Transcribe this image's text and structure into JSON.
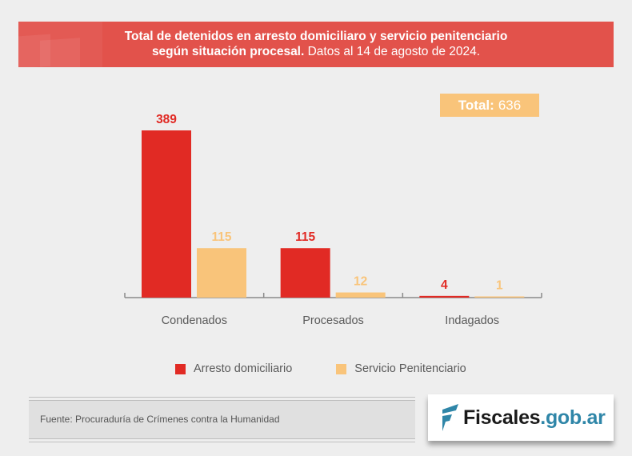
{
  "header": {
    "title_bold": "Total de detenidos en arresto domiciliaro y servicio penitenciario",
    "subtitle_bold": "según situación procesal.",
    "subtitle_regular": "Datos al 14 de agosto de 2024."
  },
  "total": {
    "label": "Total:",
    "value": "636"
  },
  "chart_data": {
    "type": "bar",
    "title": "Total de detenidos en arresto domiciliaro y servicio penitenciario según situación procesal. Datos al 14 de agosto de 2024.",
    "xlabel": "",
    "ylabel": "",
    "categories": [
      "Condenados",
      "Procesados",
      "Indagados"
    ],
    "series": [
      {
        "name": "Arresto domiciliario",
        "color": "#e12a24",
        "values": [
          389,
          115,
          4
        ]
      },
      {
        "name": "Servicio Penitenciario",
        "color": "#f9c47a",
        "values": [
          115,
          12,
          1
        ]
      }
    ],
    "ylim": [
      0,
      389
    ],
    "grid": false,
    "legend_position": "bottom",
    "annotations": [
      "Total: 636"
    ]
  },
  "legend": {
    "items": [
      {
        "label": "Arresto domiciliario",
        "color": "#e12a24"
      },
      {
        "label": "Servicio Penitenciario",
        "color": "#f9c47a"
      }
    ]
  },
  "footer": {
    "source": "Fuente: Procuraduría de Crímenes contra la Humanidad",
    "logo_name": "Fiscales",
    "logo_domain": ".gob.ar",
    "logo_color": "#2f86a8"
  }
}
